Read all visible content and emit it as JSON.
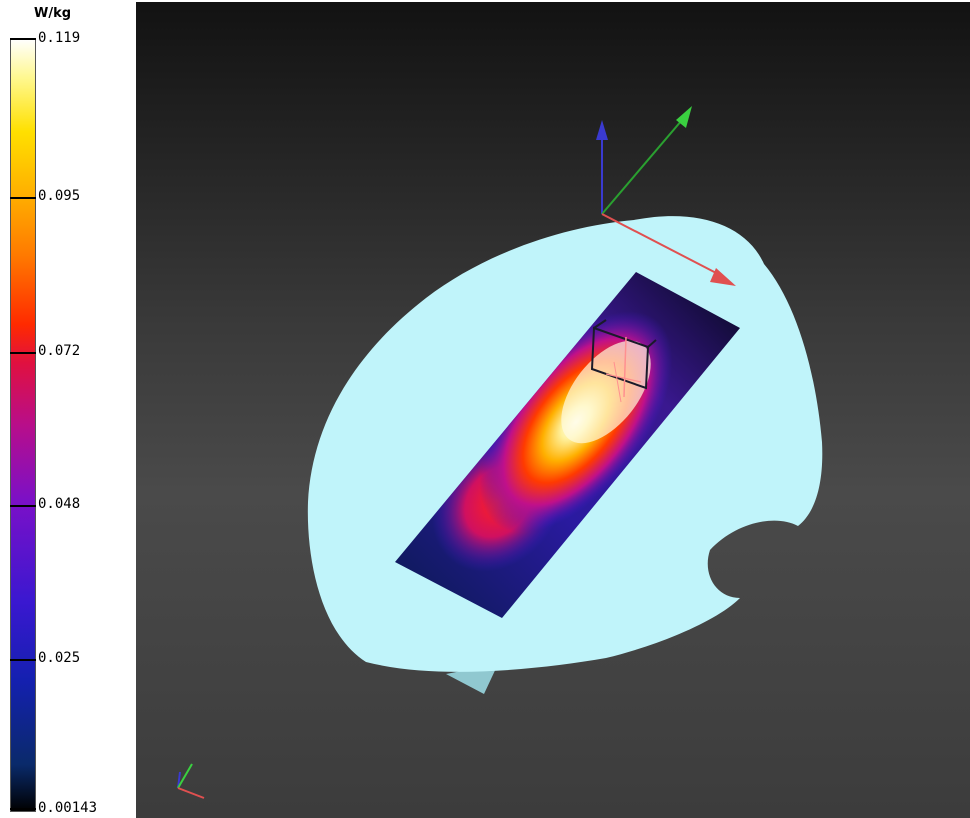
{
  "legend": {
    "unit": "W/kg",
    "ticks": [
      "0.119",
      "0.095",
      "0.072",
      "0.048",
      "0.025",
      "0.00143"
    ]
  },
  "colors": {
    "phantom": "#c0f4fa",
    "background_top": "#121212",
    "background_bottom": "#3c3c3c",
    "axis_x": "#e05050",
    "axis_y": "#3ad040",
    "axis_z": "#3a3ad0"
  }
}
